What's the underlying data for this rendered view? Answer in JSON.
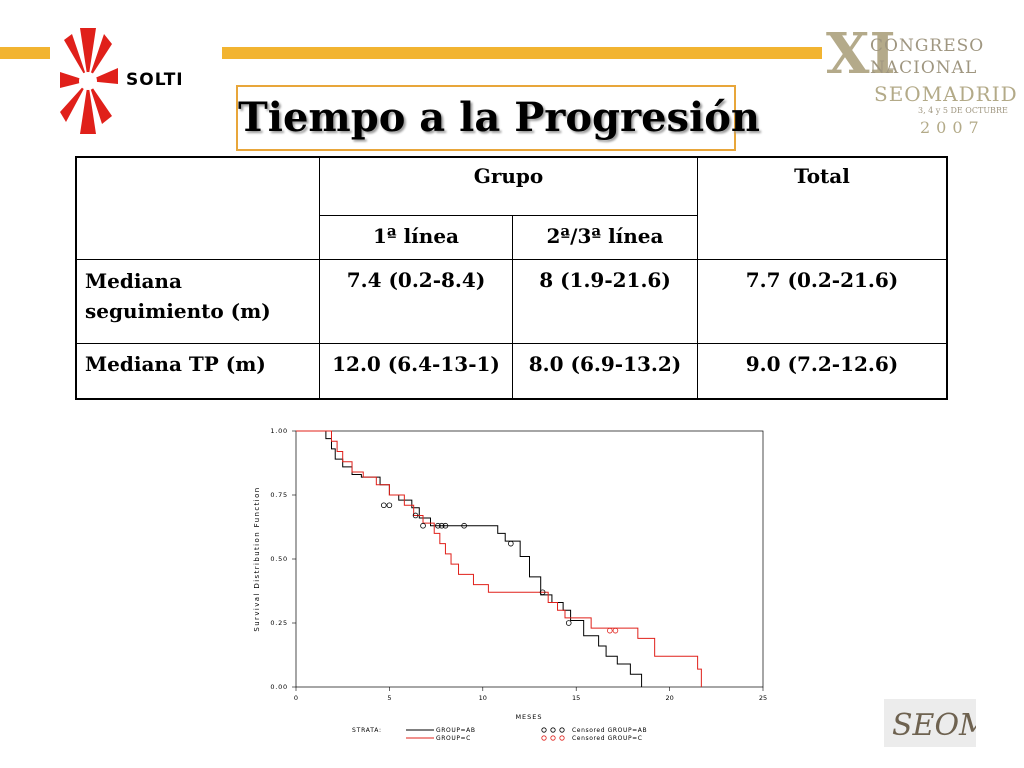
{
  "header": {
    "brand_text": "SOLTI",
    "title": "Tiempo a la Progresión",
    "congress": {
      "numeral": "XI",
      "line1": "CONGRESO",
      "line2": "NACIONAL",
      "line3": "SEOMADRID",
      "line4": "3, 4 y 5 DE OCTUBRE",
      "line5": "2007"
    },
    "footer_logo_text": "SEOM"
  },
  "table": {
    "group_header": "Grupo",
    "total_header": "Total",
    "sub_headers": [
      "1ª línea",
      "2ª/3ª línea"
    ],
    "rows": [
      {
        "label": "Mediana seguimiento (m)",
        "values": [
          "7.4 (0.2-8.4)",
          "8 (1.9-21.6)",
          "7.7 (0.2-21.6)"
        ]
      },
      {
        "label": "Mediana TP (m)",
        "values": [
          "12.0 (6.4-13-1)",
          "8.0 (6.9-13.2)",
          "9.0 (7.2-12.6)"
        ]
      }
    ]
  },
  "colors": {
    "accent_bar": "#f2b431",
    "title_border": "#e8a63a",
    "group_ab": "#000000",
    "group_c": "#e0201a"
  },
  "chart_data": {
    "type": "line",
    "step": true,
    "xlabel": "MESES",
    "ylabel": "Survival Distribution Function",
    "xlim": [
      0,
      25
    ],
    "ylim": [
      0,
      1
    ],
    "x_ticks": [
      0,
      5,
      10,
      15,
      20,
      25
    ],
    "y_ticks": [
      0.0,
      0.25,
      0.5,
      0.75,
      1.0
    ],
    "x_tick_labels": [
      "0",
      "5",
      "10",
      "15",
      "20",
      "25"
    ],
    "y_tick_labels": [
      "0.00",
      "0.25",
      "0.50",
      "0.75",
      "1.00"
    ],
    "legend": {
      "strata_label": "STRATA:",
      "entries": [
        "GROUP=AB",
        "GROUP=C"
      ],
      "censored_entries": [
        "Censored GROUP=AB",
        "Censored GROUP=C"
      ]
    },
    "series": [
      {
        "name": "GROUP=AB",
        "color": "#000000",
        "steps": [
          [
            0,
            1.0
          ],
          [
            1.6,
            0.97
          ],
          [
            1.9,
            0.93
          ],
          [
            2.1,
            0.89
          ],
          [
            2.5,
            0.86
          ],
          [
            3.0,
            0.83
          ],
          [
            3.5,
            0.82
          ],
          [
            4.5,
            0.79
          ],
          [
            5.0,
            0.75
          ],
          [
            5.5,
            0.73
          ],
          [
            6.2,
            0.7
          ],
          [
            6.6,
            0.66
          ],
          [
            7.2,
            0.63
          ],
          [
            10.8,
            0.6
          ],
          [
            11.2,
            0.57
          ],
          [
            12.0,
            0.51
          ],
          [
            12.5,
            0.43
          ],
          [
            13.1,
            0.36
          ],
          [
            13.7,
            0.33
          ],
          [
            14.3,
            0.3
          ],
          [
            14.7,
            0.26
          ],
          [
            15.4,
            0.2
          ],
          [
            16.2,
            0.16
          ],
          [
            16.6,
            0.12
          ],
          [
            17.2,
            0.09
          ],
          [
            17.9,
            0.05
          ],
          [
            18.5,
            0.0
          ]
        ],
        "censored": [
          [
            4.7,
            0.71
          ],
          [
            5.0,
            0.71
          ],
          [
            6.4,
            0.67
          ],
          [
            6.8,
            0.63
          ],
          [
            7.6,
            0.63
          ],
          [
            7.8,
            0.63
          ],
          [
            8.0,
            0.63
          ],
          [
            9.0,
            0.63
          ],
          [
            11.5,
            0.56
          ],
          [
            13.2,
            0.37
          ],
          [
            14.6,
            0.25
          ]
        ]
      },
      {
        "name": "GROUP=C",
        "color": "#e0201a",
        "steps": [
          [
            0,
            1.0
          ],
          [
            1.9,
            0.96
          ],
          [
            2.2,
            0.92
          ],
          [
            2.5,
            0.88
          ],
          [
            3.0,
            0.84
          ],
          [
            3.6,
            0.82
          ],
          [
            4.3,
            0.79
          ],
          [
            5.0,
            0.75
          ],
          [
            5.8,
            0.71
          ],
          [
            6.3,
            0.67
          ],
          [
            6.8,
            0.64
          ],
          [
            7.4,
            0.6
          ],
          [
            7.7,
            0.56
          ],
          [
            8.0,
            0.52
          ],
          [
            8.3,
            0.48
          ],
          [
            8.7,
            0.44
          ],
          [
            9.5,
            0.4
          ],
          [
            10.3,
            0.37
          ],
          [
            12.0,
            0.37
          ],
          [
            13.5,
            0.33
          ],
          [
            14.0,
            0.3
          ],
          [
            14.4,
            0.27
          ],
          [
            15.8,
            0.23
          ],
          [
            18.3,
            0.19
          ],
          [
            19.2,
            0.12
          ],
          [
            21.5,
            0.07
          ],
          [
            21.7,
            0.0
          ]
        ],
        "censored": [
          [
            16.8,
            0.22
          ],
          [
            17.1,
            0.22
          ]
        ]
      }
    ]
  }
}
